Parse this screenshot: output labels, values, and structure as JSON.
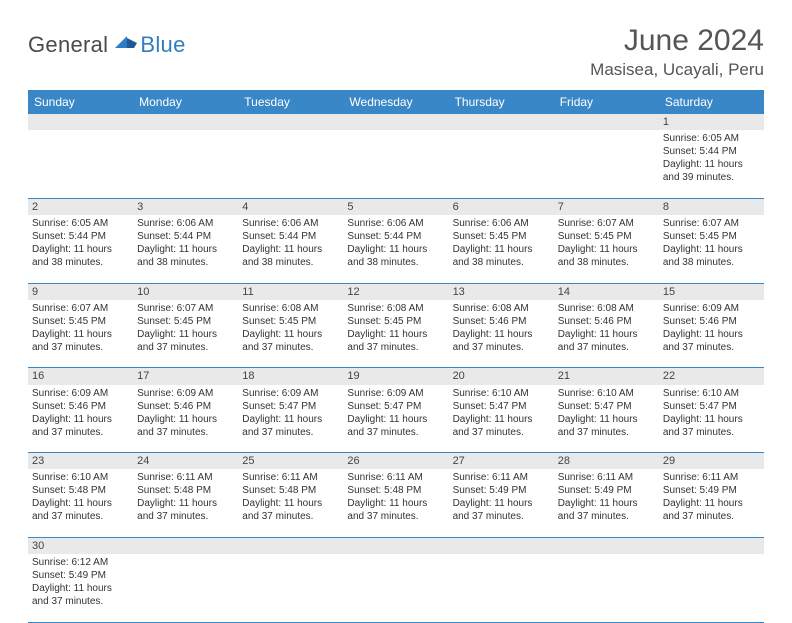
{
  "logo": {
    "general": "General",
    "blue": "Blue"
  },
  "title": "June 2024",
  "location": "Masisea, Ucayali, Peru",
  "colors": {
    "header_bg": "#3a87c8",
    "header_text": "#ffffff",
    "daynum_bg": "#e9e9e9",
    "border": "#3a87c8",
    "text": "#333333",
    "title_text": "#555555"
  },
  "day_headers": [
    "Sunday",
    "Monday",
    "Tuesday",
    "Wednesday",
    "Thursday",
    "Friday",
    "Saturday"
  ],
  "weeks": [
    [
      null,
      null,
      null,
      null,
      null,
      null,
      {
        "n": "1",
        "sr": "6:05 AM",
        "ss": "5:44 PM",
        "dl": "11 hours and 39 minutes."
      }
    ],
    [
      {
        "n": "2",
        "sr": "6:05 AM",
        "ss": "5:44 PM",
        "dl": "11 hours and 38 minutes."
      },
      {
        "n": "3",
        "sr": "6:06 AM",
        "ss": "5:44 PM",
        "dl": "11 hours and 38 minutes."
      },
      {
        "n": "4",
        "sr": "6:06 AM",
        "ss": "5:44 PM",
        "dl": "11 hours and 38 minutes."
      },
      {
        "n": "5",
        "sr": "6:06 AM",
        "ss": "5:44 PM",
        "dl": "11 hours and 38 minutes."
      },
      {
        "n": "6",
        "sr": "6:06 AM",
        "ss": "5:45 PM",
        "dl": "11 hours and 38 minutes."
      },
      {
        "n": "7",
        "sr": "6:07 AM",
        "ss": "5:45 PM",
        "dl": "11 hours and 38 minutes."
      },
      {
        "n": "8",
        "sr": "6:07 AM",
        "ss": "5:45 PM",
        "dl": "11 hours and 38 minutes."
      }
    ],
    [
      {
        "n": "9",
        "sr": "6:07 AM",
        "ss": "5:45 PM",
        "dl": "11 hours and 37 minutes."
      },
      {
        "n": "10",
        "sr": "6:07 AM",
        "ss": "5:45 PM",
        "dl": "11 hours and 37 minutes."
      },
      {
        "n": "11",
        "sr": "6:08 AM",
        "ss": "5:45 PM",
        "dl": "11 hours and 37 minutes."
      },
      {
        "n": "12",
        "sr": "6:08 AM",
        "ss": "5:45 PM",
        "dl": "11 hours and 37 minutes."
      },
      {
        "n": "13",
        "sr": "6:08 AM",
        "ss": "5:46 PM",
        "dl": "11 hours and 37 minutes."
      },
      {
        "n": "14",
        "sr": "6:08 AM",
        "ss": "5:46 PM",
        "dl": "11 hours and 37 minutes."
      },
      {
        "n": "15",
        "sr": "6:09 AM",
        "ss": "5:46 PM",
        "dl": "11 hours and 37 minutes."
      }
    ],
    [
      {
        "n": "16",
        "sr": "6:09 AM",
        "ss": "5:46 PM",
        "dl": "11 hours and 37 minutes."
      },
      {
        "n": "17",
        "sr": "6:09 AM",
        "ss": "5:46 PM",
        "dl": "11 hours and 37 minutes."
      },
      {
        "n": "18",
        "sr": "6:09 AM",
        "ss": "5:47 PM",
        "dl": "11 hours and 37 minutes."
      },
      {
        "n": "19",
        "sr": "6:09 AM",
        "ss": "5:47 PM",
        "dl": "11 hours and 37 minutes."
      },
      {
        "n": "20",
        "sr": "6:10 AM",
        "ss": "5:47 PM",
        "dl": "11 hours and 37 minutes."
      },
      {
        "n": "21",
        "sr": "6:10 AM",
        "ss": "5:47 PM",
        "dl": "11 hours and 37 minutes."
      },
      {
        "n": "22",
        "sr": "6:10 AM",
        "ss": "5:47 PM",
        "dl": "11 hours and 37 minutes."
      }
    ],
    [
      {
        "n": "23",
        "sr": "6:10 AM",
        "ss": "5:48 PM",
        "dl": "11 hours and 37 minutes."
      },
      {
        "n": "24",
        "sr": "6:11 AM",
        "ss": "5:48 PM",
        "dl": "11 hours and 37 minutes."
      },
      {
        "n": "25",
        "sr": "6:11 AM",
        "ss": "5:48 PM",
        "dl": "11 hours and 37 minutes."
      },
      {
        "n": "26",
        "sr": "6:11 AM",
        "ss": "5:48 PM",
        "dl": "11 hours and 37 minutes."
      },
      {
        "n": "27",
        "sr": "6:11 AM",
        "ss": "5:49 PM",
        "dl": "11 hours and 37 minutes."
      },
      {
        "n": "28",
        "sr": "6:11 AM",
        "ss": "5:49 PM",
        "dl": "11 hours and 37 minutes."
      },
      {
        "n": "29",
        "sr": "6:11 AM",
        "ss": "5:49 PM",
        "dl": "11 hours and 37 minutes."
      }
    ],
    [
      {
        "n": "30",
        "sr": "6:12 AM",
        "ss": "5:49 PM",
        "dl": "11 hours and 37 minutes."
      },
      null,
      null,
      null,
      null,
      null,
      null
    ]
  ],
  "labels": {
    "sunrise": "Sunrise:",
    "sunset": "Sunset:",
    "daylight": "Daylight:"
  }
}
